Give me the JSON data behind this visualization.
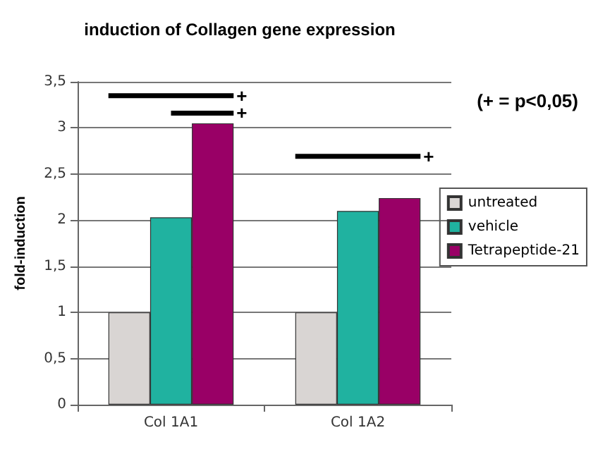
{
  "chart_data": {
    "type": "bar",
    "title": "induction of Collagen gene expression",
    "ylabel": "fold-induction",
    "categories": [
      "Col 1A1",
      "Col 1A2"
    ],
    "series": [
      {
        "name": "untreated",
        "color": "#d9d5d3",
        "values": [
          1,
          1
        ]
      },
      {
        "name": "vehicle",
        "color": "#20b2a0",
        "values": [
          2.03,
          2.1
        ]
      },
      {
        "name": "Tetrapeptide-21",
        "color": "#990066",
        "values": [
          3.05,
          2.24
        ]
      }
    ],
    "ylim": [
      0,
      3.5
    ],
    "yticks": [
      0,
      {
        "value": 0.5,
        "label": "0,5"
      },
      1,
      {
        "value": 1.5,
        "label": "1,5"
      },
      2,
      {
        "value": 2.5,
        "label": "2,5"
      },
      3,
      {
        "value": 3.5,
        "label": "3,5"
      }
    ],
    "grid": "y",
    "legend": "right",
    "annotations": [
      "+",
      "+",
      "+",
      "(+ = p<0,05)"
    ]
  }
}
